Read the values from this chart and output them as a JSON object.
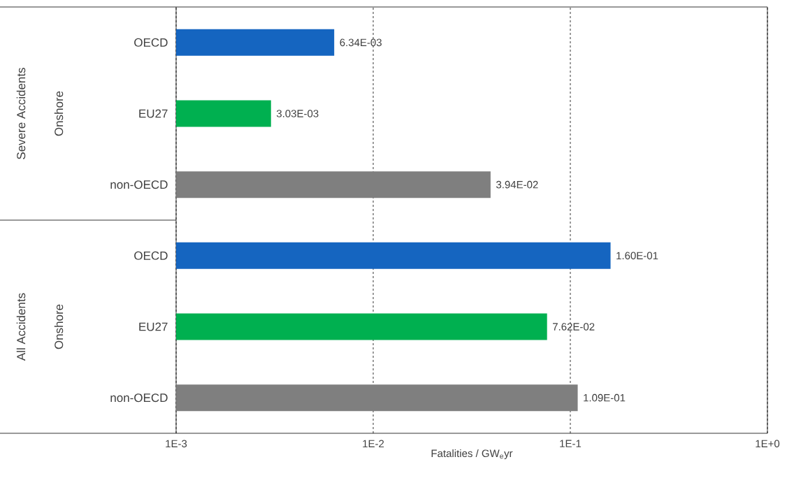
{
  "chart_data": {
    "type": "bar",
    "orientation": "horizontal",
    "log": "x",
    "xlabel": "Fatalities / GW$_{e}$yr",
    "categories": [
      "OECD",
      "EU27",
      "non-OECD",
      "OECD",
      "EU27",
      "non-OECD"
    ],
    "values": [
      0.00634,
      0.00303,
      0.0394,
      0.16,
      0.0762,
      0.109
    ],
    "value_labels": [
      "6.34E-03",
      "3.03E-03",
      "3.94E-02",
      "1.60E-01",
      "7.62E-02",
      "1.09E-01"
    ],
    "colors": [
      "#1565c0",
      "#00b050",
      "#7f7f7f",
      "#1565c0",
      "#00b050",
      "#7f7f7f"
    ],
    "xlim": [
      0.001,
      1
    ],
    "xticks": [
      {
        "value": 0.001,
        "label": "1E-3"
      },
      {
        "value": 0.01,
        "label": "1E-2"
      },
      {
        "value": 0.1,
        "label": "1E-1"
      },
      {
        "value": 1,
        "label": "1E+0"
      }
    ],
    "grid": "x",
    "annotations": [
      "Severe Accidents",
      "Onshore",
      "All Accidents",
      "Onshore"
    ]
  }
}
